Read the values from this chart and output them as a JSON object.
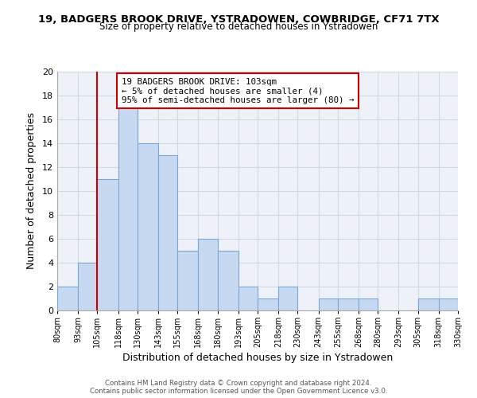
{
  "title": "19, BADGERS BROOK DRIVE, YSTRADOWEN, COWBRIDGE, CF71 7TX",
  "subtitle": "Size of property relative to detached houses in Ystradowen",
  "xlabel": "Distribution of detached houses by size in Ystradowen",
  "ylabel": "Number of detached properties",
  "bins": [
    80,
    93,
    105,
    118,
    130,
    143,
    155,
    168,
    180,
    193,
    205,
    218,
    230,
    243,
    255,
    268,
    280,
    293,
    305,
    318,
    330
  ],
  "counts": [
    2,
    4,
    11,
    17,
    14,
    13,
    5,
    6,
    5,
    2,
    1,
    2,
    0,
    1,
    1,
    1,
    0,
    0,
    1,
    1
  ],
  "bar_color": "#c6d9f1",
  "bar_edge_color": "#7ba7d8",
  "property_line_x": 105,
  "property_line_color": "#cc0000",
  "ylim": [
    0,
    20
  ],
  "annotation_title": "19 BADGERS BROOK DRIVE: 103sqm",
  "annotation_line1": "← 5% of detached houses are smaller (4)",
  "annotation_line2": "95% of semi-detached houses are larger (80) →",
  "annotation_box_color": "#ffffff",
  "annotation_box_edge_color": "#cc0000",
  "footer_line1": "Contains HM Land Registry data © Crown copyright and database right 2024.",
  "footer_line2": "Contains public sector information licensed under the Open Government Licence v3.0.",
  "tick_labels": [
    "80sqm",
    "93sqm",
    "105sqm",
    "118sqm",
    "130sqm",
    "143sqm",
    "155sqm",
    "168sqm",
    "180sqm",
    "193sqm",
    "205sqm",
    "218sqm",
    "230sqm",
    "243sqm",
    "255sqm",
    "268sqm",
    "280sqm",
    "293sqm",
    "305sqm",
    "318sqm",
    "330sqm"
  ],
  "grid_color": "#d0d8e8",
  "bg_color": "#eef2f8"
}
